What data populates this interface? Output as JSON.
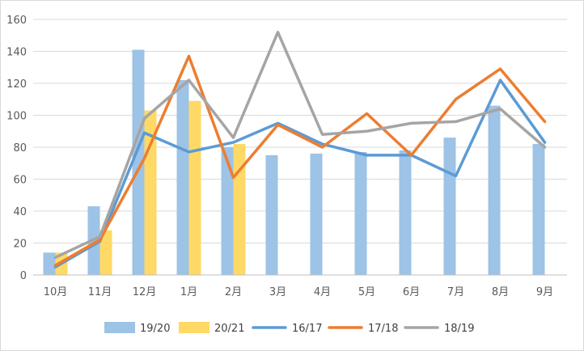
{
  "chart_data": {
    "type": "bar",
    "title": "",
    "xlabel": "",
    "ylabel": "",
    "ylim": [
      0,
      160
    ],
    "ytick_step": 20,
    "grid": true,
    "legend_position": "bottom",
    "categories": [
      "10月",
      "11月",
      "12月",
      "1月",
      "2月",
      "3月",
      "4月",
      "5月",
      "6月",
      "7月",
      "8月",
      "9月"
    ],
    "bar_series": [
      {
        "name": "19/20",
        "color": "#9dc3e6",
        "values": [
          14,
          43,
          141,
          122,
          80,
          75,
          76,
          77,
          78,
          86,
          106,
          82
        ]
      },
      {
        "name": "20/21",
        "color": "#ffd966",
        "values": [
          14,
          28,
          103,
          109,
          82,
          null,
          null,
          null,
          null,
          null,
          null,
          null
        ]
      }
    ],
    "line_series": [
      {
        "name": "16/17",
        "color": "#5b9bd5",
        "values": [
          5,
          21,
          89,
          77,
          83,
          95,
          82,
          75,
          75,
          62,
          122,
          83
        ]
      },
      {
        "name": "17/18",
        "color": "#ed7d31",
        "values": [
          6,
          22,
          73,
          137,
          61,
          94,
          80,
          101,
          75,
          110,
          129,
          96
        ]
      },
      {
        "name": "18/19",
        "color": "#a5a5a5",
        "values": [
          11,
          24,
          98,
          122,
          86,
          152,
          88,
          90,
          95,
          96,
          104,
          80
        ]
      }
    ]
  }
}
